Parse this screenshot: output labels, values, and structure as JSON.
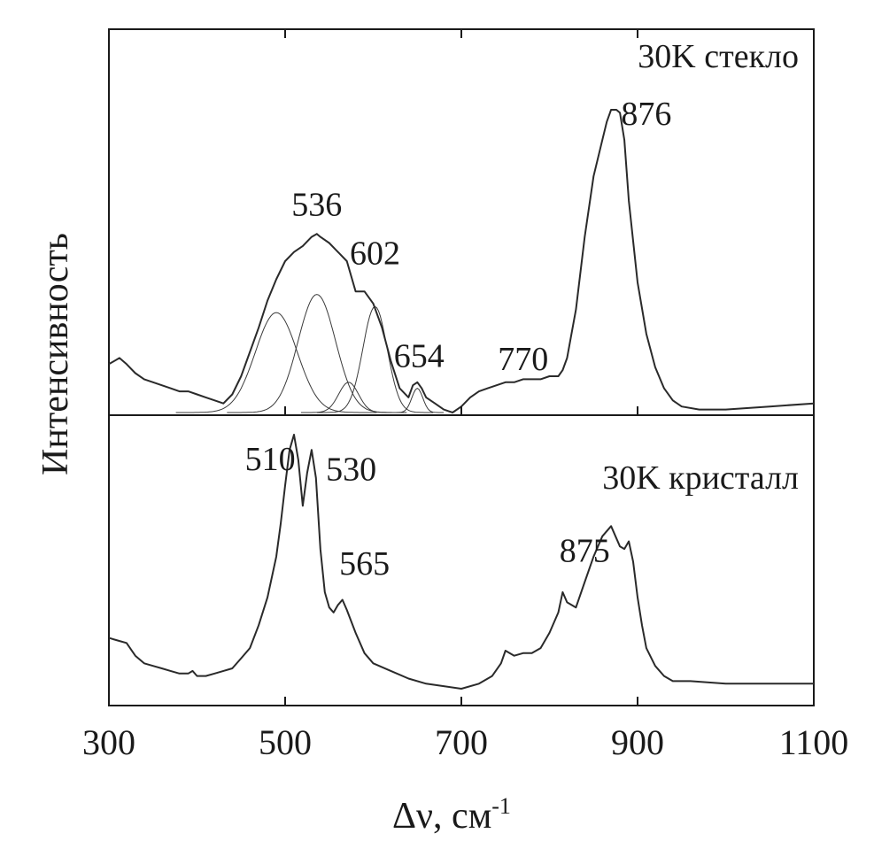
{
  "chart_data": {
    "type": "line",
    "xlabel": "Δν, см",
    "xlabel_superscript": "-1",
    "ylabel": "Интенсивность",
    "xlim": [
      300,
      1100
    ],
    "x_ticks": [
      300,
      500,
      700,
      900,
      1100
    ],
    "x_tick_labels": [
      "300",
      "500",
      "700",
      "900",
      "1100"
    ],
    "panels": [
      {
        "name": "glass",
        "title": "30K стекло",
        "ylim": [
          0,
          1
        ],
        "series": {
          "name": "30K стекло",
          "x": [
            300,
            312,
            320,
            330,
            340,
            350,
            360,
            370,
            380,
            390,
            400,
            410,
            420,
            430,
            440,
            450,
            460,
            470,
            480,
            490,
            500,
            510,
            520,
            530,
            536,
            540,
            550,
            560,
            570,
            580,
            590,
            600,
            610,
            620,
            630,
            640,
            645,
            650,
            655,
            660,
            670,
            680,
            690,
            700,
            710,
            720,
            730,
            740,
            750,
            760,
            770,
            780,
            790,
            800,
            810,
            815,
            820,
            830,
            840,
            850,
            860,
            865,
            870,
            876,
            880,
            885,
            890,
            900,
            910,
            920,
            930,
            940,
            950,
            970,
            1000,
            1050,
            1100
          ],
          "y": [
            0.16,
            0.18,
            0.16,
            0.13,
            0.11,
            0.1,
            0.09,
            0.08,
            0.07,
            0.07,
            0.06,
            0.05,
            0.04,
            0.03,
            0.06,
            0.12,
            0.2,
            0.28,
            0.37,
            0.44,
            0.5,
            0.53,
            0.55,
            0.58,
            0.59,
            0.58,
            0.56,
            0.53,
            0.5,
            0.4,
            0.4,
            0.36,
            0.28,
            0.17,
            0.08,
            0.05,
            0.09,
            0.1,
            0.08,
            0.05,
            0.03,
            0.01,
            0.0,
            0.02,
            0.05,
            0.07,
            0.08,
            0.09,
            0.1,
            0.1,
            0.11,
            0.11,
            0.11,
            0.12,
            0.12,
            0.14,
            0.18,
            0.34,
            0.58,
            0.78,
            0.9,
            0.96,
            1.0,
            1.0,
            0.99,
            0.9,
            0.7,
            0.43,
            0.26,
            0.15,
            0.08,
            0.04,
            0.02,
            0.01,
            0.01,
            0.02,
            0.03
          ]
        },
        "components": [
          {
            "center": 490,
            "amplitude": 0.33,
            "width": 38
          },
          {
            "center": 536,
            "amplitude": 0.39,
            "width": 34
          },
          {
            "center": 572,
            "amplitude": 0.1,
            "width": 18
          },
          {
            "center": 602,
            "amplitude": 0.35,
            "width": 22
          },
          {
            "center": 650,
            "amplitude": 0.08,
            "width": 10
          }
        ],
        "peak_labels": [
          {
            "text": "536",
            "x": 536,
            "y": 0.65
          },
          {
            "text": "602",
            "x": 602,
            "y": 0.49
          },
          {
            "text": "654",
            "x": 652,
            "y": 0.15
          },
          {
            "text": "770",
            "x": 770,
            "y": 0.14
          },
          {
            "text": "876",
            "x": 910,
            "y": 0.95
          }
        ]
      },
      {
        "name": "crystal",
        "title": "30K кристалл",
        "ylim": [
          0,
          1
        ],
        "series": {
          "name": "30K кристалл",
          "x": [
            300,
            310,
            320,
            330,
            340,
            350,
            360,
            370,
            380,
            390,
            395,
            400,
            410,
            420,
            430,
            440,
            450,
            460,
            470,
            480,
            490,
            495,
            500,
            505,
            510,
            515,
            520,
            525,
            530,
            535,
            540,
            545,
            550,
            555,
            560,
            565,
            570,
            580,
            590,
            600,
            620,
            640,
            660,
            680,
            700,
            720,
            735,
            745,
            750,
            760,
            770,
            780,
            790,
            800,
            810,
            815,
            820,
            830,
            840,
            850,
            860,
            870,
            875,
            880,
            885,
            890,
            895,
            900,
            905,
            910,
            920,
            930,
            940,
            960,
            1000,
            1050,
            1100
          ],
          "y": [
            0.2,
            0.19,
            0.18,
            0.13,
            0.1,
            0.09,
            0.08,
            0.07,
            0.06,
            0.06,
            0.07,
            0.05,
            0.05,
            0.06,
            0.07,
            0.08,
            0.12,
            0.16,
            0.25,
            0.36,
            0.52,
            0.65,
            0.8,
            0.94,
            1.0,
            0.9,
            0.72,
            0.85,
            0.94,
            0.83,
            0.55,
            0.38,
            0.32,
            0.3,
            0.33,
            0.35,
            0.31,
            0.22,
            0.14,
            0.1,
            0.07,
            0.04,
            0.02,
            0.01,
            0.0,
            0.02,
            0.05,
            0.1,
            0.15,
            0.13,
            0.14,
            0.14,
            0.16,
            0.22,
            0.3,
            0.38,
            0.34,
            0.32,
            0.42,
            0.52,
            0.6,
            0.64,
            0.6,
            0.56,
            0.55,
            0.58,
            0.5,
            0.36,
            0.25,
            0.16,
            0.09,
            0.05,
            0.03,
            0.03,
            0.02,
            0.02,
            0.02
          ]
        },
        "peak_labels": [
          {
            "text": "510",
            "x": 483,
            "y": 0.86
          },
          {
            "text": "530",
            "x": 575,
            "y": 0.82
          },
          {
            "text": "565",
            "x": 590,
            "y": 0.45
          },
          {
            "text": "875",
            "x": 840,
            "y": 0.5
          }
        ]
      }
    ]
  }
}
